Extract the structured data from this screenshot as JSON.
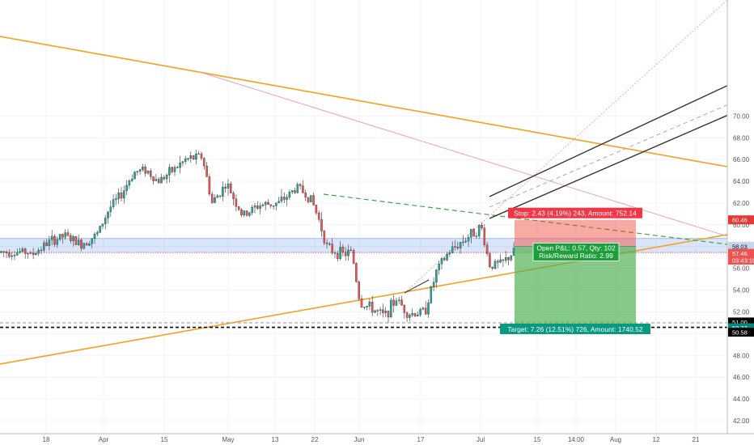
{
  "chart_data": {
    "type": "candlestick",
    "ylim": [
      41.4,
      71.6
    ],
    "x_ticks": [
      "18",
      "Apr",
      "15",
      "May",
      "13",
      "22",
      "Jun",
      "17",
      "Jul",
      "15",
      "14:00",
      "Aug",
      "12",
      "21"
    ],
    "y_ticks": [
      "42.00",
      "44.00",
      "46.00",
      "48.00",
      "50.00",
      "52.00",
      "54.00",
      "56.00",
      "58.00",
      "60.00",
      "62.00",
      "64.00",
      "66.00",
      "68.00",
      "70.00"
    ],
    "price_tags": [
      {
        "label": "60.46",
        "value": 60.46,
        "color": "#e53935",
        "text_color": "#ffffff"
      },
      {
        "label": "58.03",
        "value": 58.03,
        "color": "#c7d6ef",
        "text_color": "#111111"
      },
      {
        "label": "57.46",
        "value": 57.46,
        "color": "#ef5350",
        "text_color": "#ffffff"
      },
      {
        "label": "03:43:10",
        "value": 56.98,
        "color": "#ef5350",
        "text_color": "#ffffff"
      },
      {
        "label": "51.00",
        "value": 51.0,
        "color": "#000000",
        "text_color": "#ffffff"
      },
      {
        "label": "50.77",
        "value": 50.77,
        "color": "#00897b",
        "text_color": "#ffffff"
      },
      {
        "label": "50.58",
        "value": 50.58,
        "color": "#000000",
        "text_color": "#ffffff"
      }
    ],
    "position": {
      "stop_label": "Stop: 2.43 (4.19%) 243, Amount: 752.14",
      "target_label": "Target: 7.26 (12.51%) 726, Amount: 1740.52",
      "open_pnl_label": "Open P&L: 0.57, Qty: 102",
      "risk_reward_label": "Risk/Reward Ratio: 2.99",
      "entry": 58.03,
      "stop": 60.46,
      "target": 50.77
    },
    "resistance_zone": [
      57.4,
      58.75
    ],
    "horizontal_levels": [
      {
        "value": 51.0,
        "color": "#9e9e9e",
        "style": "dashed"
      },
      {
        "value": 50.58,
        "color": "#000000",
        "style": "dashed"
      },
      {
        "value": 57.46,
        "color": "#ef5350",
        "style": "dotted"
      }
    ],
    "colors": {
      "up": "#26a69a",
      "down": "#ef5350",
      "trend": "#f7a021",
      "channel": "#333333"
    },
    "price_path": [
      [
        57.0,
        56.3
      ],
      [
        35,
        57.0
      ],
      [
        60,
        58.4
      ],
      [
        80,
        59.0
      ],
      [
        100,
        58.2
      ],
      [
        120,
        59.1
      ],
      [
        135,
        61.5
      ],
      [
        150,
        62.8
      ],
      [
        165,
        64.8
      ],
      [
        180,
        65.1
      ],
      [
        195,
        64.0
      ],
      [
        210,
        64.8
      ],
      [
        230,
        66.0
      ],
      [
        250,
        66.3
      ],
      [
        262,
        62.0
      ],
      [
        280,
        63.8
      ],
      [
        300,
        60.8
      ],
      [
        320,
        61.8
      ],
      [
        345,
        62.0
      ],
      [
        368,
        63.5
      ],
      [
        385,
        62.3
      ],
      [
        395,
        60.3
      ],
      [
        405,
        57.8
      ],
      [
        425,
        57.3
      ],
      [
        435,
        57.5
      ],
      [
        445,
        52.8
      ],
      [
        460,
        52.3
      ],
      [
        475,
        51.6
      ],
      [
        490,
        53.2
      ],
      [
        505,
        51.8
      ],
      [
        525,
        52.0
      ],
      [
        540,
        55.8
      ],
      [
        555,
        57.5
      ],
      [
        570,
        58.4
      ],
      [
        585,
        59.3
      ],
      [
        595,
        59.8
      ],
      [
        605,
        56.3
      ],
      [
        620,
        56.4
      ],
      [
        635,
        57.5
      ]
    ]
  }
}
